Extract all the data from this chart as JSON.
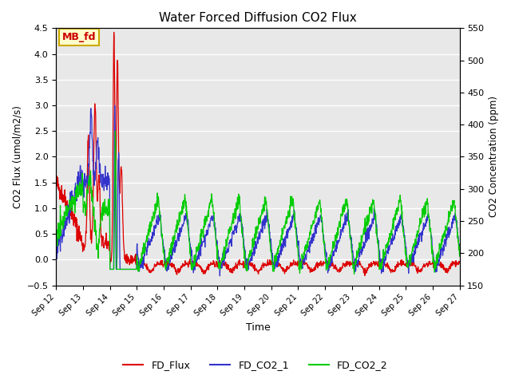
{
  "title": "Water Forced Diffusion CO2 Flux",
  "xlabel": "Time",
  "ylabel_left": "CO2 Flux (umol/m2/s)",
  "ylabel_right": "CO2 Concentration (ppm)",
  "ylim_left": [
    -0.5,
    4.5
  ],
  "ylim_right": [
    150,
    550
  ],
  "bg_color": "#e8e8e8",
  "legend_entries": [
    "FD_Flux",
    "FD_CO2_1",
    "FD_CO2_2"
  ],
  "line_colors": [
    "#dd0000",
    "#3333cc",
    "#00cc00"
  ],
  "annotation_text": "MB_fd",
  "annotation_bg": "#ffffcc",
  "annotation_border": "#ccaa00",
  "xtick_labels": [
    "Sep 12",
    "Sep 13",
    "Sep 14",
    "Sep 15",
    "Sep 16",
    "Sep 17",
    "Sep 18",
    "Sep 19",
    "Sep 20",
    "Sep 21",
    "Sep 22",
    "Sep 23",
    "Sep 24",
    "Sep 25",
    "Sep 26",
    "Sep 27"
  ],
  "xtick_positions": [
    0,
    1,
    2,
    3,
    4,
    5,
    6,
    7,
    8,
    9,
    10,
    11,
    12,
    13,
    14,
    15
  ]
}
